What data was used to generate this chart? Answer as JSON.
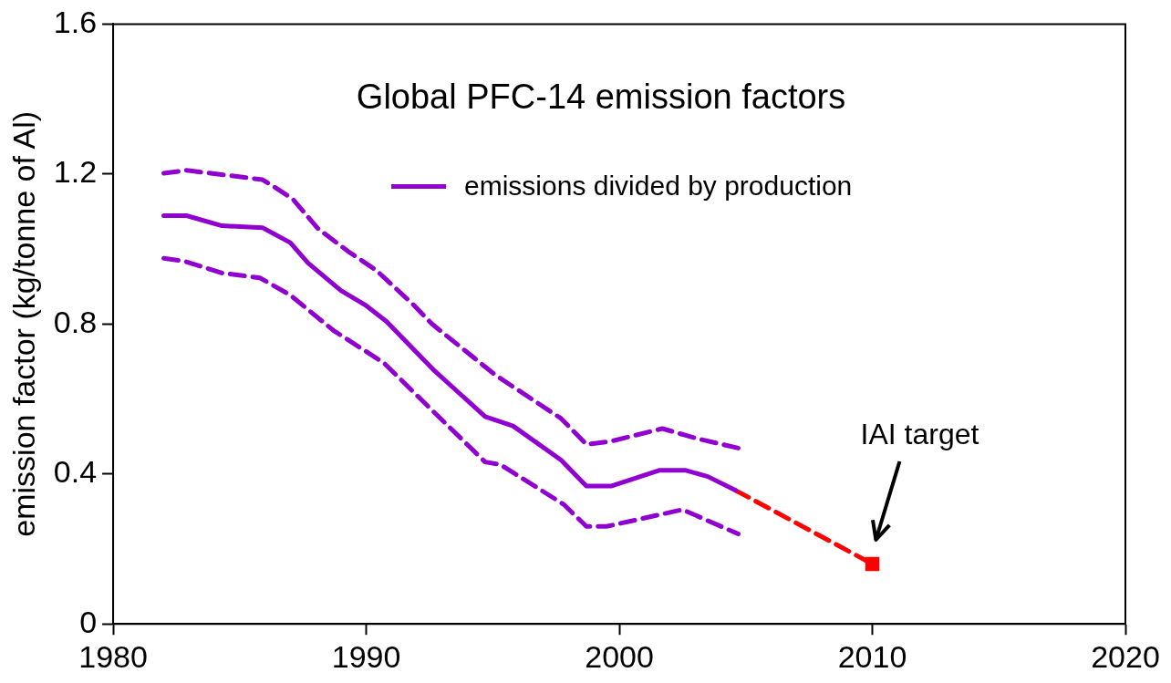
{
  "chart_data": {
    "type": "line",
    "title": "Global PFC-14 emission factors",
    "ylabel": "emission factor (kg/tonne of Al)",
    "xlim": [
      1980,
      2020
    ],
    "xticks": [
      1980,
      1990,
      2000,
      2010,
      2020
    ],
    "ylim": [
      0,
      1.6
    ],
    "yticks": [
      0,
      0.4,
      0.8,
      1.2,
      1.6
    ],
    "grid": false,
    "legend": "top",
    "marker": "none",
    "series": [
      {
        "name": "emissions divided by production",
        "color": "#9000d0",
        "line_style": "solid",
        "x": [
          1982,
          1982.9,
          1984.3,
          1985.9,
          1987,
          1987.7,
          1989,
          1990,
          1990.8,
          1992.7,
          1994.7,
          1995.8,
          1997.7,
          1998.7,
          1999.7,
          2001.6,
          2002.6,
          2003.5,
          2004.6
        ],
        "values": [
          1.089,
          1.089,
          1.062,
          1.057,
          1.017,
          0.963,
          0.889,
          0.849,
          0.807,
          0.675,
          0.553,
          0.528,
          0.437,
          0.368,
          0.368,
          0.41,
          0.41,
          0.393,
          0.356
        ]
      },
      {
        "color": "#9000d0",
        "line_style": "dashed",
        "x": [
          1982,
          1982.9,
          1985.9,
          1986.5,
          1987.1,
          1988.1,
          1989.3,
          1990.4,
          1991.9,
          1992.6,
          1995.1,
          1997.7,
          1998.7,
          1999.6,
          2001.7,
          2003.1,
          2004.7
        ],
        "values": [
          1.202,
          1.21,
          1.185,
          1.16,
          1.133,
          1.054,
          0.993,
          0.943,
          0.849,
          0.8,
          0.664,
          0.548,
          0.479,
          0.486,
          0.521,
          0.494,
          0.469
        ]
      },
      {
        "color": "#9000d0",
        "line_style": "dashed",
        "x": [
          1982,
          1982.8,
          1984.3,
          1985.8,
          1987,
          1988.7,
          1990.7,
          1992.6,
          1994.7,
          1995.3,
          1997.8,
          1998.7,
          1999.5,
          2002.5,
          2004.7
        ],
        "values": [
          0.975,
          0.968,
          0.936,
          0.923,
          0.877,
          0.783,
          0.696,
          0.57,
          0.432,
          0.425,
          0.319,
          0.26,
          0.26,
          0.305,
          0.24
        ]
      },
      {
        "type": "line",
        "color": "#ff0000",
        "line_style": "dashed",
        "x": [
          2004.6,
          2010
        ],
        "values": [
          0.356,
          0.16
        ]
      },
      {
        "type": "scatter",
        "color": "#ff0000",
        "marker": "square",
        "x": [
          2010
        ],
        "values": [
          0.16
        ]
      }
    ],
    "annotations": [
      "IAI target"
    ]
  }
}
